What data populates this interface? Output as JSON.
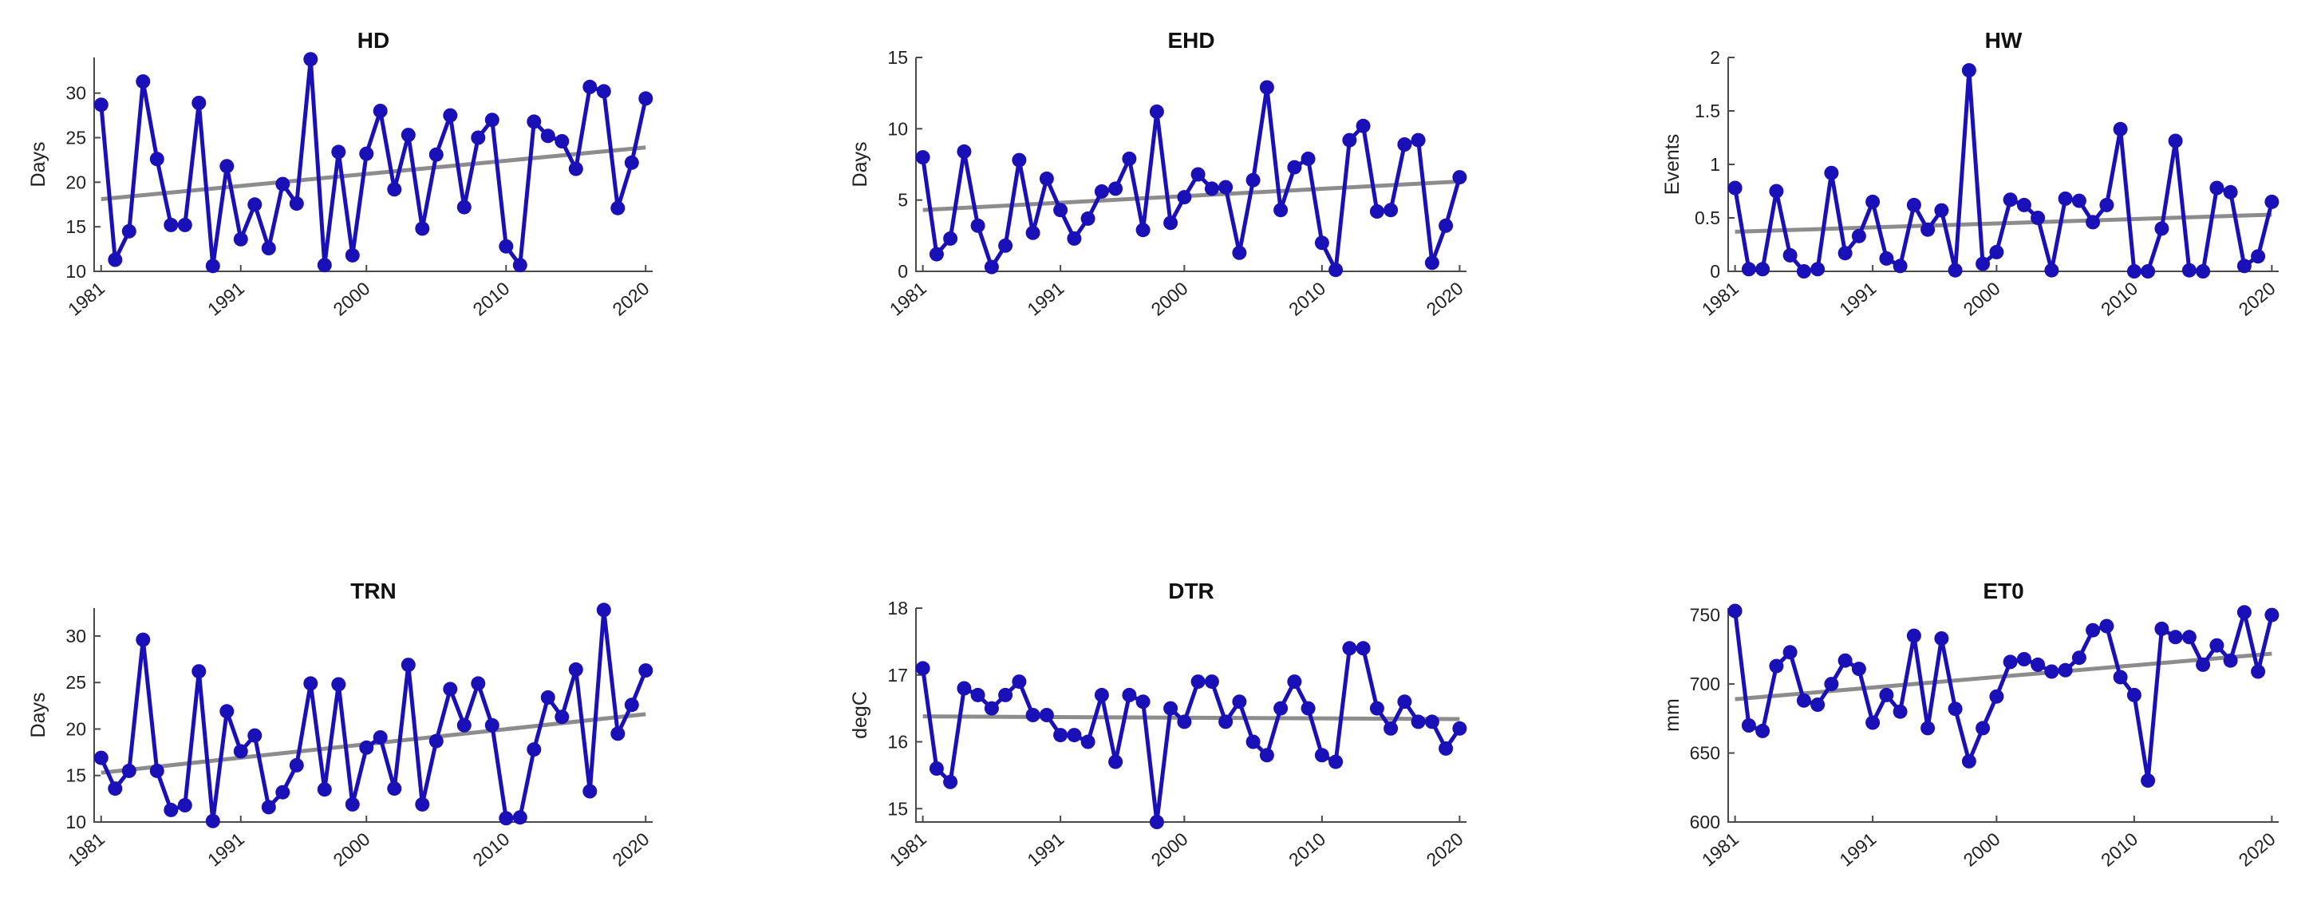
{
  "colors": {
    "series": "#1a10b8",
    "trend": "#8c8c8c",
    "axis": "#4a4a4a"
  },
  "chart_data": [
    {
      "type": "line",
      "title": "HD",
      "ylabel": "Days",
      "xlabel": "",
      "ylim": [
        10,
        34
      ],
      "yticks": [
        10,
        15,
        20,
        25,
        30
      ],
      "xlim": [
        1980.5,
        2020.5
      ],
      "xticks": [
        1981,
        1991,
        2000,
        2010,
        2020
      ],
      "grid": false,
      "series": [
        {
          "x": [
            1981,
            1982,
            1983,
            1984,
            1985,
            1986,
            1987,
            1988,
            1989,
            1990,
            1991,
            1992,
            1993,
            1994,
            1995,
            1996,
            1997,
            1998,
            1999,
            2000,
            2001,
            2002,
            2003,
            2004,
            2005,
            2006,
            2007,
            2008,
            2009,
            2010,
            2011,
            2012,
            2013,
            2014,
            2015,
            2016,
            2017,
            2018,
            2019,
            2020
          ],
          "y": [
            28.7,
            11.3,
            14.5,
            31.3,
            22.6,
            15.2,
            15.2,
            28.9,
            10.6,
            21.8,
            13.6,
            17.5,
            12.6,
            19.8,
            17.6,
            33.8,
            10.7,
            23.4,
            11.8,
            23.2,
            28.0,
            19.2,
            25.3,
            14.8,
            23.1,
            27.5,
            17.2,
            25.0,
            27.0,
            12.8,
            10.7,
            26.8,
            25.2,
            24.6,
            21.5,
            30.7,
            30.2,
            17.1,
            22.2,
            29.4
          ]
        }
      ],
      "trend": {
        "y": [
          18.1,
          23.9
        ]
      }
    },
    {
      "type": "line",
      "title": "EHD",
      "ylabel": "Days",
      "xlabel": "",
      "ylim": [
        0,
        15
      ],
      "yticks": [
        0,
        5,
        10,
        15
      ],
      "xlim": [
        1980.5,
        2020.5
      ],
      "xticks": [
        1981,
        1991,
        2000,
        2010,
        2020
      ],
      "grid": false,
      "series": [
        {
          "x": [
            1981,
            1982,
            1983,
            1984,
            1985,
            1986,
            1987,
            1988,
            1989,
            1990,
            1991,
            1992,
            1993,
            1994,
            1995,
            1996,
            1997,
            1998,
            1999,
            2000,
            2001,
            2002,
            2003,
            2004,
            2005,
            2006,
            2007,
            2008,
            2009,
            2010,
            2011,
            2012,
            2013,
            2014,
            2015,
            2016,
            2017,
            2018,
            2019,
            2020
          ],
          "y": [
            8.0,
            1.2,
            2.3,
            8.4,
            3.2,
            0.3,
            1.8,
            7.8,
            2.7,
            6.5,
            4.3,
            2.3,
            3.7,
            5.6,
            5.8,
            7.9,
            2.9,
            11.2,
            3.4,
            5.2,
            6.8,
            5.8,
            5.9,
            1.3,
            6.4,
            12.9,
            4.3,
            7.3,
            7.9,
            2.0,
            0.1,
            9.2,
            10.2,
            4.2,
            4.3,
            8.9,
            9.2,
            0.6,
            3.2,
            6.6
          ]
        }
      ],
      "trend": {
        "y": [
          4.3,
          6.3
        ]
      }
    },
    {
      "type": "line",
      "title": "HW",
      "ylabel": "Events",
      "xlabel": "",
      "ylim": [
        0,
        2
      ],
      "yticks": [
        0,
        0.5,
        1,
        1.5,
        2
      ],
      "xlim": [
        1980.5,
        2020.5
      ],
      "xticks": [
        1981,
        1991,
        2000,
        2010,
        2020
      ],
      "grid": false,
      "series": [
        {
          "x": [
            1981,
            1982,
            1983,
            1984,
            1985,
            1986,
            1987,
            1988,
            1989,
            1990,
            1991,
            1992,
            1993,
            1994,
            1995,
            1996,
            1997,
            1998,
            1999,
            2000,
            2001,
            2002,
            2003,
            2004,
            2005,
            2006,
            2007,
            2008,
            2009,
            2010,
            2011,
            2012,
            2013,
            2014,
            2015,
            2016,
            2017,
            2018,
            2019,
            2020
          ],
          "y": [
            0.78,
            0.02,
            0.02,
            0.75,
            0.15,
            0.0,
            0.02,
            0.92,
            0.17,
            0.33,
            0.65,
            0.12,
            0.05,
            0.62,
            0.39,
            0.57,
            0.01,
            1.88,
            0.07,
            0.18,
            0.67,
            0.62,
            0.5,
            0.01,
            0.68,
            0.66,
            0.46,
            0.62,
            1.33,
            0.0,
            0.0,
            0.4,
            1.22,
            0.01,
            0.0,
            0.78,
            0.74,
            0.05,
            0.14,
            0.65
          ]
        }
      ],
      "trend": {
        "y": [
          0.37,
          0.53
        ]
      }
    },
    {
      "type": "line",
      "title": "TRN",
      "ylabel": "Days",
      "xlabel": "",
      "ylim": [
        10,
        33
      ],
      "yticks": [
        10,
        15,
        20,
        25,
        30
      ],
      "xlim": [
        1980.5,
        2020.5
      ],
      "xticks": [
        1981,
        1991,
        2000,
        2010,
        2020
      ],
      "grid": false,
      "series": [
        {
          "x": [
            1981,
            1982,
            1983,
            1984,
            1985,
            1986,
            1987,
            1988,
            1989,
            1990,
            1991,
            1992,
            1993,
            1994,
            1995,
            1996,
            1997,
            1998,
            1999,
            2000,
            2001,
            2002,
            2003,
            2004,
            2005,
            2006,
            2007,
            2008,
            2009,
            2010,
            2011,
            2012,
            2013,
            2014,
            2015,
            2016,
            2017,
            2018,
            2019,
            2020
          ],
          "y": [
            16.9,
            13.6,
            15.5,
            29.6,
            15.5,
            11.3,
            11.8,
            26.2,
            10.1,
            21.9,
            17.6,
            19.3,
            11.6,
            13.2,
            16.1,
            24.9,
            13.5,
            24.8,
            11.9,
            18.0,
            19.1,
            13.6,
            26.9,
            11.9,
            18.7,
            24.3,
            20.4,
            24.9,
            20.4,
            10.4,
            10.5,
            17.8,
            23.4,
            21.3,
            26.4,
            13.3,
            32.8,
            19.5,
            22.6,
            26.3
          ]
        }
      ],
      "trend": {
        "y": [
          15.3,
          21.6
        ]
      }
    },
    {
      "type": "line",
      "title": "DTR",
      "ylabel": "degC",
      "xlabel": "",
      "ylim": [
        14.8,
        18
      ],
      "yticks": [
        15,
        16,
        17,
        18
      ],
      "xlim": [
        1980.5,
        2020.5
      ],
      "xticks": [
        1981,
        1991,
        2000,
        2010,
        2020
      ],
      "grid": false,
      "series": [
        {
          "x": [
            1981,
            1982,
            1983,
            1984,
            1985,
            1986,
            1987,
            1988,
            1989,
            1990,
            1991,
            1992,
            1993,
            1994,
            1995,
            1996,
            1997,
            1998,
            1999,
            2000,
            2001,
            2002,
            2003,
            2004,
            2005,
            2006,
            2007,
            2008,
            2009,
            2010,
            2011,
            2012,
            2013,
            2014,
            2015,
            2016,
            2017,
            2018,
            2019,
            2020
          ],
          "y": [
            17.1,
            15.6,
            15.4,
            16.8,
            16.7,
            16.5,
            16.7,
            16.9,
            16.4,
            16.4,
            16.1,
            16.1,
            16.0,
            16.7,
            15.7,
            16.7,
            16.6,
            14.8,
            16.5,
            16.3,
            16.9,
            16.9,
            16.3,
            16.6,
            16.0,
            15.8,
            16.5,
            16.9,
            16.5,
            15.8,
            15.7,
            17.4,
            17.4,
            16.5,
            16.2,
            16.6,
            16.3,
            16.3,
            15.9,
            16.2
          ]
        }
      ],
      "trend": {
        "y": [
          16.38,
          16.34
        ]
      }
    },
    {
      "type": "line",
      "title": "ET0",
      "ylabel": "mm",
      "xlabel": "",
      "ylim": [
        600,
        755
      ],
      "yticks": [
        600,
        650,
        700,
        750
      ],
      "xlim": [
        1980.5,
        2020.5
      ],
      "xticks": [
        1981,
        1991,
        2000,
        2010,
        2020
      ],
      "grid": false,
      "series": [
        {
          "x": [
            1981,
            1982,
            1983,
            1984,
            1985,
            1986,
            1987,
            1988,
            1989,
            1990,
            1991,
            1992,
            1993,
            1994,
            1995,
            1996,
            1997,
            1998,
            1999,
            2000,
            2001,
            2002,
            2003,
            2004,
            2005,
            2006,
            2007,
            2008,
            2009,
            2010,
            2011,
            2012,
            2013,
            2014,
            2015,
            2016,
            2017,
            2018,
            2019,
            2020
          ],
          "y": [
            753,
            670,
            666,
            713,
            723,
            688,
            685,
            700,
            717,
            711,
            672,
            692,
            680,
            735,
            668,
            733,
            682,
            644,
            668,
            691,
            716,
            718,
            714,
            709,
            710,
            719,
            739,
            742,
            705,
            692,
            630,
            740,
            734,
            734,
            714,
            728,
            717,
            752,
            709,
            750
          ]
        }
      ],
      "trend": {
        "y": [
          689,
          722
        ]
      }
    }
  ]
}
